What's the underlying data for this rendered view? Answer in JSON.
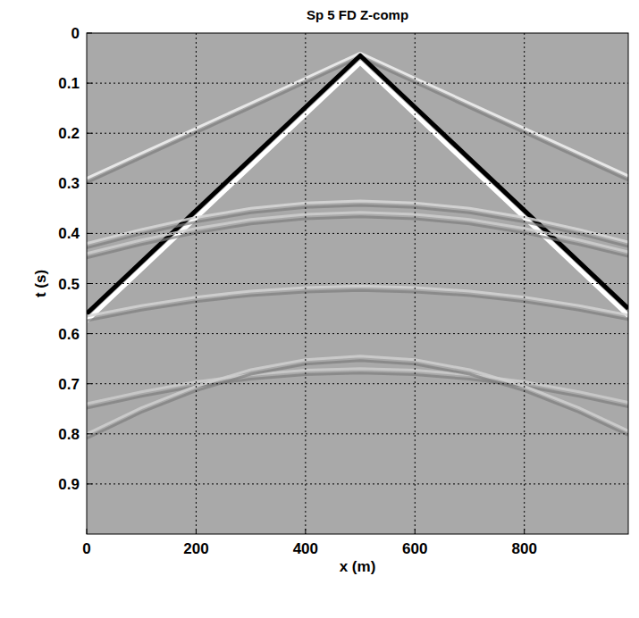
{
  "chart_data": {
    "type": "seismic",
    "title": "Sp 5 FD Z-comp",
    "x_label": "x (m)",
    "y_label": "t (s)",
    "x": [
      0,
      100,
      200,
      300,
      400,
      500,
      600,
      700,
      800,
      900,
      990
    ],
    "series": [
      {
        "color": "#f2f2f2",
        "values": [
          0.29,
          0.24,
          0.19,
          0.14,
          0.09,
          0.04,
          0.09,
          0.14,
          0.19,
          0.24,
          0.285
        ]
      },
      {
        "color": "#000000",
        "values": [
          0.56,
          0.457,
          0.354,
          0.251,
          0.148,
          0.045,
          0.148,
          0.251,
          0.354,
          0.457,
          0.55
        ]
      },
      {
        "color": "#d8d8d8",
        "values": [
          0.42,
          0.392,
          0.368,
          0.35,
          0.339,
          0.335,
          0.339,
          0.35,
          0.368,
          0.392,
          0.417
        ]
      },
      {
        "color": "#cfcfcf",
        "values": [
          0.44,
          0.413,
          0.39,
          0.372,
          0.362,
          0.358,
          0.362,
          0.372,
          0.39,
          0.413,
          0.437
        ]
      },
      {
        "color": "#d4d4d4",
        "values": [
          0.565,
          0.544,
          0.527,
          0.515,
          0.508,
          0.505,
          0.508,
          0.515,
          0.527,
          0.544,
          0.563
        ]
      },
      {
        "color": "#cccccc",
        "values": [
          0.74,
          0.716,
          0.696,
          0.682,
          0.673,
          0.67,
          0.673,
          0.682,
          0.696,
          0.716,
          0.737
        ]
      },
      {
        "color": "#d0d0d0",
        "values": [
          0.8,
          0.748,
          0.705,
          0.672,
          0.652,
          0.645,
          0.652,
          0.672,
          0.705,
          0.748,
          0.794
        ]
      }
    ],
    "xlim": [
      0,
      990
    ],
    "ylim": [
      0,
      1
    ],
    "xticks": [
      0,
      200,
      400,
      600,
      800
    ],
    "yticks": [
      0,
      0.1,
      0.2,
      0.3,
      0.4,
      0.5,
      0.6,
      0.7,
      0.8,
      0.9
    ],
    "grid": true
  }
}
